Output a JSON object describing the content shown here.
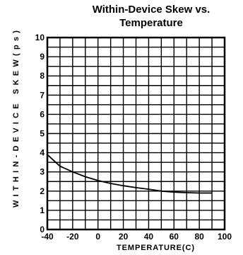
{
  "chart_data": {
    "type": "line",
    "title_lines": [
      "Within-Device Skew vs.",
      "Temperature"
    ],
    "xlabel": "TEMPERATURE(C)",
    "ylabel": "WITHIN-DEVICE SKEW(ps)",
    "xlim": [
      -40,
      100
    ],
    "ylim": [
      0,
      10
    ],
    "x_ticks": [
      -40,
      -20,
      0,
      20,
      40,
      60,
      80,
      100
    ],
    "x_tick_labels": [
      "-40",
      "-20",
      "0",
      "20",
      "40",
      "60",
      "80",
      "100"
    ],
    "y_ticks": [
      0,
      1,
      2,
      3,
      4,
      5,
      6,
      7,
      8,
      9,
      10
    ],
    "y_tick_labels": [
      "0",
      "1",
      "2",
      "3",
      "4",
      "5",
      "6",
      "7",
      "8",
      "9",
      "10"
    ],
    "grid": true,
    "series": [
      {
        "x": [
          -40,
          -30,
          -20,
          -10,
          0,
          10,
          20,
          30,
          40,
          50,
          60,
          70,
          80,
          90
        ],
        "y": [
          3.9,
          3.3,
          3.0,
          2.75,
          2.55,
          2.4,
          2.28,
          2.18,
          2.1,
          2.0,
          1.95,
          1.92,
          1.9,
          1.9
        ]
      }
    ]
  },
  "colors": {
    "line": "#000000",
    "grid": "#000000",
    "background": "#ffffff"
  }
}
